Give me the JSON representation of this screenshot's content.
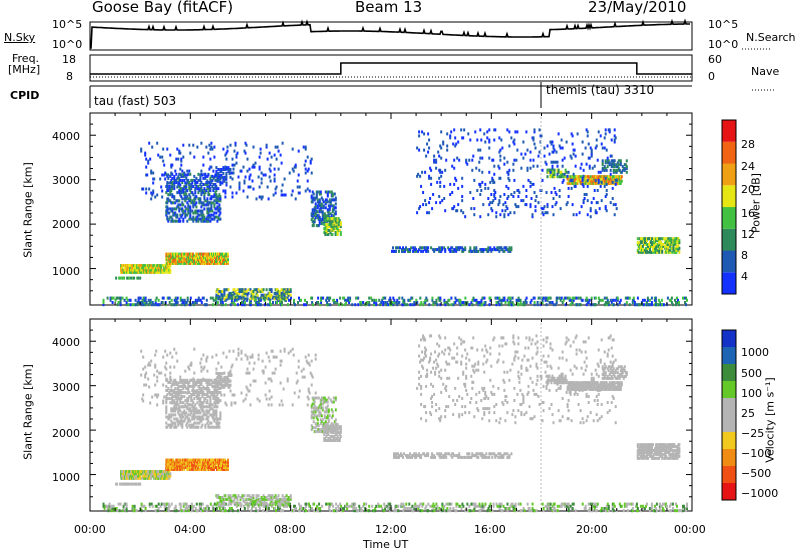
{
  "header": {
    "station": "Goose Bay (fitACF)",
    "beam": "Beam 13",
    "date": "23/May/2010"
  },
  "top_panels": {
    "nsky_label": "N.Sky",
    "nsearch_label": "N.Search",
    "nsky_ticks": [
      "10^5",
      "10^0"
    ],
    "nsearch_ticks": [
      "10^5",
      "10^0"
    ],
    "freq_label_line1": "Freq.",
    "freq_label_line2": "[MHz]",
    "freq_ticks": [
      "18",
      "8"
    ],
    "nave_label": "Nave",
    "nave_ticks": [
      "60",
      "0"
    ],
    "cpid_label": "CPID",
    "cpid_entries": [
      {
        "label": "tau (fast) 503"
      },
      {
        "label": "themis (tau) 3310"
      }
    ]
  },
  "chart_data": [
    {
      "type": "heatmap",
      "name": "power",
      "ylabel": "Slant Range [km]",
      "yticks": [
        "1000",
        "2000",
        "3000",
        "4000"
      ],
      "ylim": [
        180,
        4500
      ],
      "xlim": [
        0,
        24
      ],
      "colorbar": {
        "label": "Power [dB]",
        "ticks": [
          "4",
          "8",
          "12",
          "16",
          "20",
          "24",
          "28"
        ],
        "colors": [
          "#1432ff",
          "#1e5ab4",
          "#2e8a5a",
          "#41c041",
          "#e6e614",
          "#f0a014",
          "#f06414",
          "#e61414"
        ]
      }
    },
    {
      "type": "heatmap",
      "name": "velocity",
      "ylabel": "Slant Range [km]",
      "yticks": [
        "1000",
        "2000",
        "3000",
        "4000"
      ],
      "ylim": [
        180,
        4500
      ],
      "xlim": [
        0,
        24
      ],
      "xlabel": "Time UT",
      "xticks": [
        "00:00",
        "04:00",
        "08:00",
        "12:00",
        "16:00",
        "20:00",
        "00:00"
      ],
      "colorbar": {
        "label": "Velocity [m s⁻¹]",
        "ticks": [
          "1000",
          "500",
          "100",
          "25",
          "−25",
          "−100",
          "−500",
          "−1000"
        ],
        "colors": [
          "#1432c8",
          "#1e64b4",
          "#3c8c3c",
          "#64c828",
          "#b4b4b4",
          "#b4b4b4",
          "#f0c81e",
          "#f08c14",
          "#f05014",
          "#e61414"
        ]
      }
    }
  ]
}
